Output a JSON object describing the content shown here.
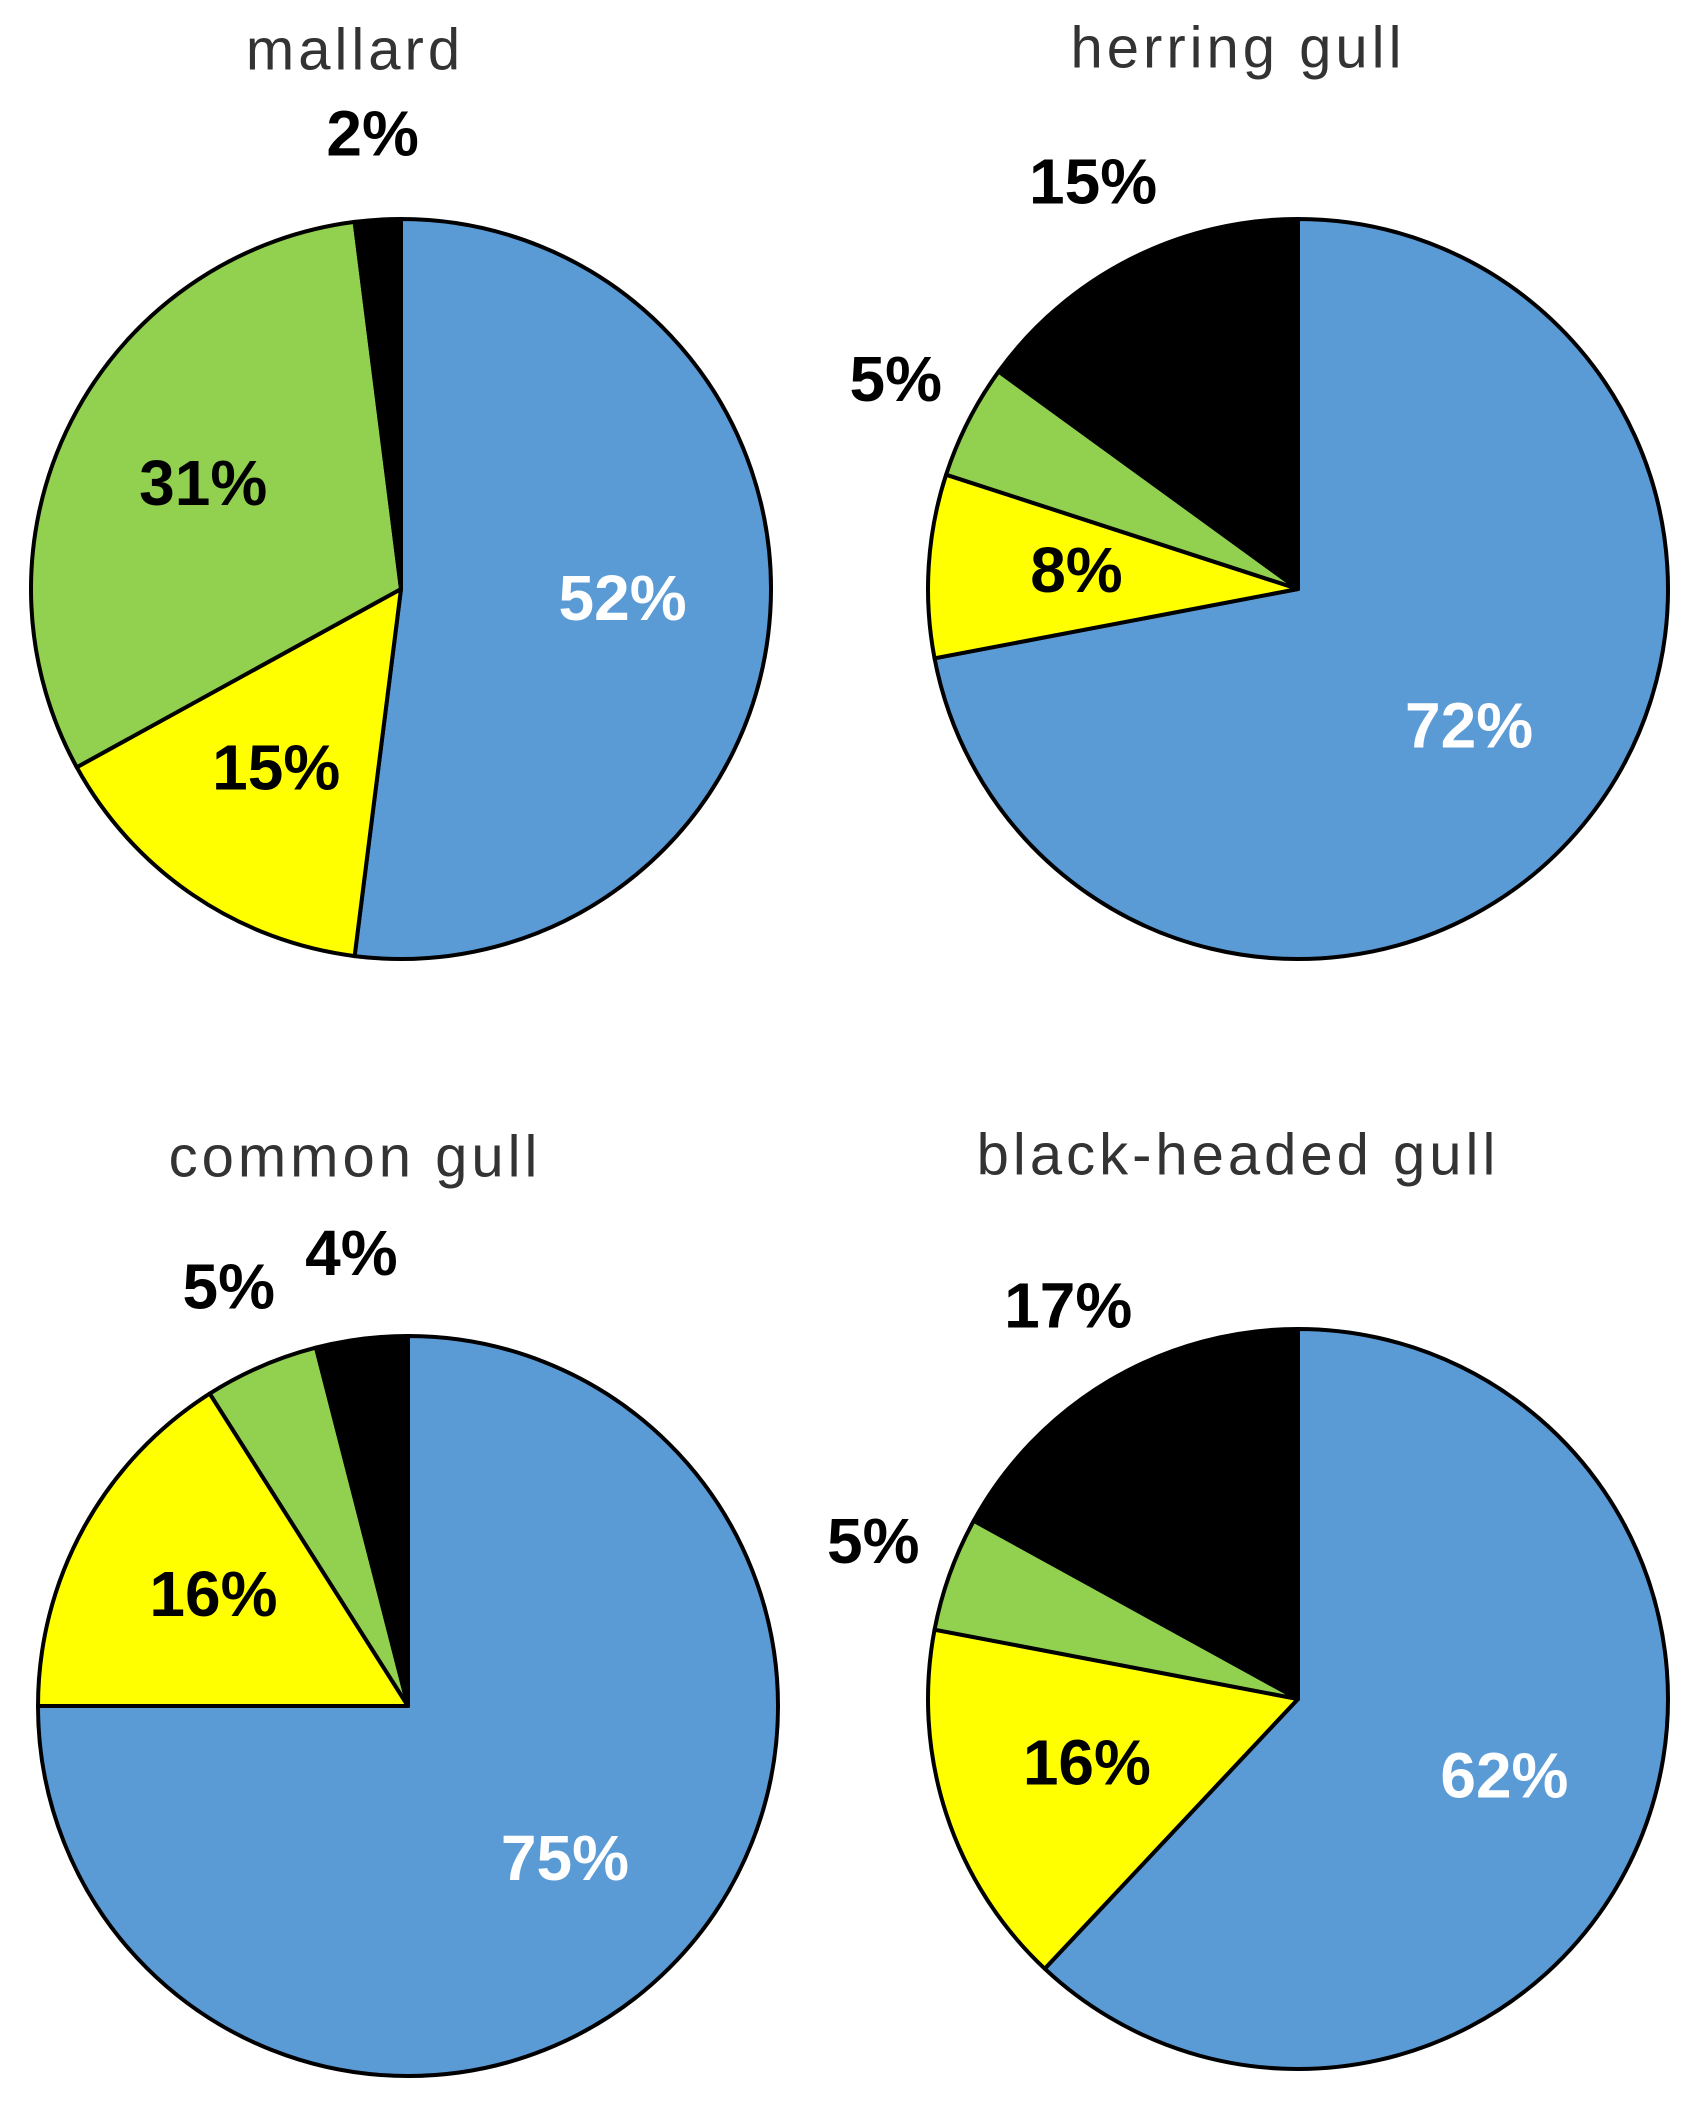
{
  "chart_data": [
    {
      "type": "pie",
      "title": "mallard",
      "values": [
        52,
        15,
        31,
        2
      ],
      "value_labels": [
        "52%",
        "15%",
        "31%",
        "2%"
      ],
      "colors": [
        "#5b9bd5",
        "#ffff00",
        "#92d050",
        "#000000"
      ]
    },
    {
      "type": "pie",
      "title": "herring gull",
      "values": [
        72,
        8,
        5,
        15
      ],
      "value_labels": [
        "72%",
        "8%",
        "5%",
        "15%"
      ],
      "colors": [
        "#5b9bd5",
        "#ffff00",
        "#92d050",
        "#000000"
      ]
    },
    {
      "type": "pie",
      "title": "common gull",
      "values": [
        75,
        16,
        5,
        4
      ],
      "value_labels": [
        "75%",
        "16%",
        "5%",
        "4%"
      ],
      "colors": [
        "#5b9bd5",
        "#ffff00",
        "#92d050",
        "#000000"
      ]
    },
    {
      "type": "pie",
      "title": "black-headed gull",
      "values": [
        62,
        16,
        5,
        17
      ],
      "value_labels": [
        "62%",
        "16%",
        "5%",
        "17%"
      ],
      "colors": [
        "#5b9bd5",
        "#ffff00",
        "#92d050",
        "#000000"
      ]
    }
  ]
}
